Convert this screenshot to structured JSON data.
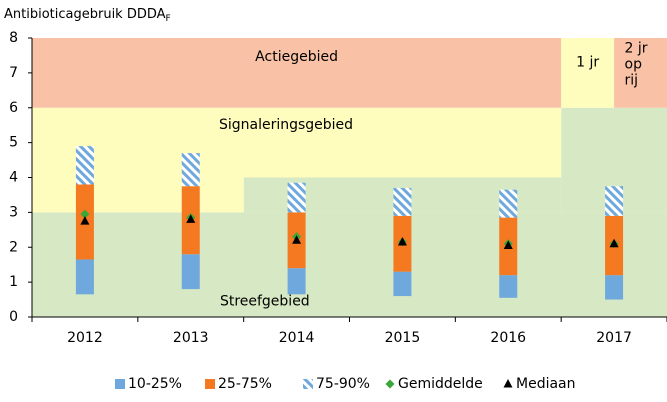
{
  "chart_data": {
    "type": "floating-bar",
    "title": "Antibioticagebruik  DDDA",
    "title_subscript": "F",
    "categories": [
      "2012",
      "2013",
      "2014",
      "2015",
      "2016",
      "2017"
    ],
    "ylim": [
      0,
      8
    ],
    "yticks": [
      0,
      1,
      2,
      3,
      4,
      5,
      6,
      7,
      8
    ],
    "zones": [
      {
        "label": "Streefgebied",
        "color": "#d7e9c4",
        "x": [
          0,
          6
        ],
        "y": [
          0,
          3
        ]
      },
      {
        "color": "#d7e9c4",
        "x": [
          2,
          5
        ],
        "y": [
          3,
          4
        ]
      },
      {
        "color": "#d7e9c4",
        "x": [
          5,
          6
        ],
        "y": [
          3,
          6
        ]
      },
      {
        "color": "#fefdbd",
        "x": [
          0,
          2
        ],
        "y": [
          3,
          4
        ]
      },
      {
        "label": "Signaleringsgebied",
        "color": "#fefdbd",
        "x": [
          0,
          5
        ],
        "y": [
          4,
          6
        ]
      },
      {
        "label": "Actiegebied",
        "color": "#f9c2a6",
        "x": [
          0,
          5
        ],
        "y": [
          6,
          8
        ]
      },
      {
        "label": "1 jr",
        "color": "#fefdbd",
        "x": [
          5,
          5.5
        ],
        "y": [
          6,
          8
        ]
      },
      {
        "label": [
          "2 jr",
          "op",
          "rij"
        ],
        "color": "#f9c2a6",
        "x": [
          5.5,
          6
        ],
        "y": [
          6,
          8
        ]
      }
    ],
    "series": [
      {
        "name": "10-25%",
        "color": "#6fa8dc",
        "values": [
          [
            0.65,
            1.65
          ],
          [
            0.8,
            1.8
          ],
          [
            0.65,
            1.4
          ],
          [
            0.6,
            1.3
          ],
          [
            0.55,
            1.2
          ],
          [
            0.5,
            1.2
          ]
        ]
      },
      {
        "name": "25-75%",
        "color": "#f47920",
        "values": [
          [
            1.65,
            3.8
          ],
          [
            1.8,
            3.75
          ],
          [
            1.4,
            3.0
          ],
          [
            1.3,
            2.9
          ],
          [
            1.2,
            2.85
          ],
          [
            1.2,
            2.9
          ]
        ]
      },
      {
        "name": "75-90%",
        "color": "#6fa8dc",
        "pattern": "hatch",
        "values": [
          [
            3.8,
            4.9
          ],
          [
            3.75,
            4.7
          ],
          [
            3.0,
            3.85
          ],
          [
            2.9,
            3.7
          ],
          [
            2.85,
            3.65
          ],
          [
            2.9,
            3.75
          ]
        ]
      }
    ],
    "markers": [
      {
        "name": "Gemiddelde",
        "color": "#3aa63a",
        "shape": "diamond",
        "values": [
          2.95,
          2.85,
          2.3,
          2.15,
          2.1,
          2.1
        ]
      },
      {
        "name": "Mediaan",
        "color": "#000000",
        "shape": "triangle",
        "values": [
          2.75,
          2.8,
          2.2,
          2.15,
          2.05,
          2.1
        ]
      }
    ]
  }
}
